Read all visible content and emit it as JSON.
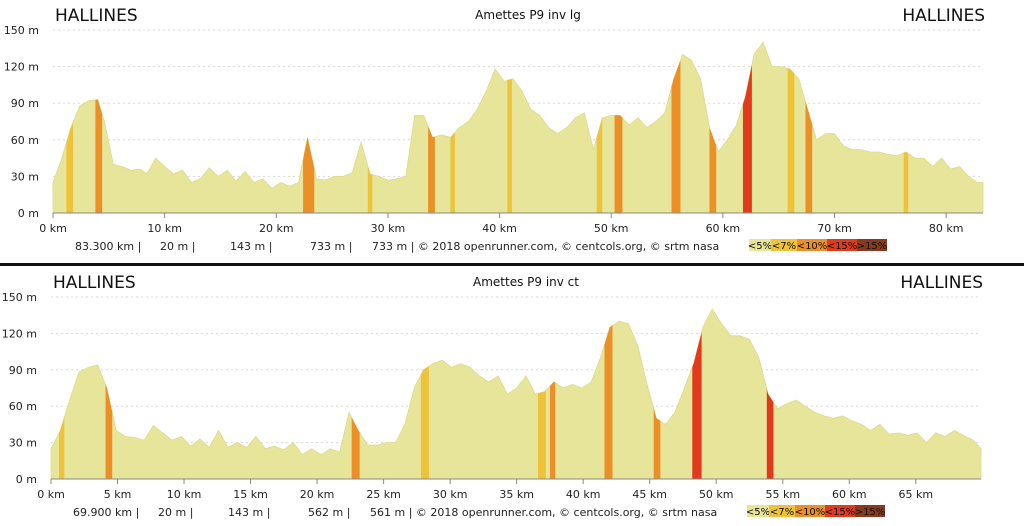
{
  "colors": {
    "base": "#e6e59a",
    "grade": [
      "#e6e59a",
      "#eec33a",
      "#eb8f26",
      "#e23a1a",
      "#8a3a1c"
    ]
  },
  "chart_data": [
    {
      "type": "area",
      "title": "Amettes P9 inv lg",
      "start_label": "HALLINES",
      "end_label": "HALLINES",
      "xlim": [
        0,
        83.3
      ],
      "ylim": [
        0,
        150
      ],
      "xticks": [
        {
          "v": 0,
          "label": "0 km"
        },
        {
          "v": 10,
          "label": "10 km"
        },
        {
          "v": 20,
          "label": "20 km"
        },
        {
          "v": 30,
          "label": "30 km"
        },
        {
          "v": 40,
          "label": "40 km"
        },
        {
          "v": 50,
          "label": "50 km"
        },
        {
          "v": 60,
          "label": "60 km"
        },
        {
          "v": 70,
          "label": "70 km"
        },
        {
          "v": 80,
          "label": "80 km"
        }
      ],
      "yticks": [
        {
          "v": 0,
          "label": "0 m"
        },
        {
          "v": 30,
          "label": "30 m"
        },
        {
          "v": 60,
          "label": "60 m"
        },
        {
          "v": 90,
          "label": "90 m"
        },
        {
          "v": 120,
          "label": "120 m"
        },
        {
          "v": 150,
          "label": "150 m"
        }
      ],
      "grid": true,
      "distance": [
        0,
        0.8,
        1.6,
        2.4,
        3.2,
        4.0,
        4.6,
        5.4,
        6.2,
        7.0,
        7.8,
        8.4,
        9.2,
        10.0,
        10.8,
        11.6,
        12.4,
        13.2,
        14.0,
        14.8,
        15.6,
        16.4,
        17.2,
        18.0,
        18.8,
        19.6,
        20.4,
        21.2,
        22.0,
        22.8,
        23.6,
        24.4,
        25.2,
        26.0,
        26.8,
        27.6,
        28.4,
        29.2,
        30.0,
        30.8,
        31.6,
        32.4,
        33.2,
        34.0,
        34.8,
        35.6,
        36.4,
        37.2,
        38.0,
        38.8,
        39.6,
        40.4,
        41.2,
        42.0,
        42.8,
        43.6,
        44.4,
        45.2,
        46.0,
        46.8,
        47.6,
        48.4,
        49.2,
        50.0,
        50.8,
        51.6,
        52.4,
        53.2,
        54.0,
        54.8,
        55.6,
        56.4,
        57.2,
        58.0,
        58.8,
        59.6,
        60.4,
        61.2,
        62.0,
        62.8,
        63.6,
        64.4,
        65.2,
        66.0,
        66.8,
        67.6,
        68.4,
        69.2,
        70.0,
        70.8,
        71.6,
        72.4,
        73.2,
        74.0,
        74.8,
        75.6,
        76.4,
        77.2,
        78.0,
        78.8,
        79.6,
        80.4,
        81.2,
        82.0,
        82.8,
        83.3
      ],
      "elevation": [
        25,
        45,
        70,
        88,
        92,
        93,
        75,
        40,
        38,
        35,
        36,
        32,
        45,
        38,
        32,
        35,
        25,
        28,
        37,
        30,
        35,
        26,
        34,
        25,
        28,
        20,
        25,
        22,
        25,
        62,
        28,
        27,
        30,
        30,
        33,
        58,
        32,
        30,
        27,
        28,
        30,
        80,
        80,
        62,
        64,
        62,
        70,
        75,
        85,
        100,
        118,
        108,
        110,
        100,
        85,
        80,
        70,
        65,
        70,
        78,
        82,
        52,
        78,
        80,
        80,
        72,
        78,
        70,
        75,
        82,
        110,
        130,
        125,
        110,
        70,
        50,
        60,
        72,
        95,
        130,
        140,
        120,
        120,
        118,
        110,
        85,
        60,
        65,
        65,
        55,
        52,
        52,
        50,
        50,
        48,
        47,
        50,
        45,
        45,
        38,
        45,
        36,
        38,
        30,
        25,
        25
      ],
      "steep": [
        [
          1.2,
          1.8,
          1
        ],
        [
          3.8,
          4.4,
          2
        ],
        [
          22.4,
          23.4,
          2
        ],
        [
          28.2,
          28.6,
          1
        ],
        [
          33.6,
          34.2,
          2
        ],
        [
          35.6,
          36.0,
          1
        ],
        [
          40.7,
          41.1,
          1
        ],
        [
          48.7,
          49.2,
          1
        ],
        [
          50.3,
          51.0,
          2
        ],
        [
          55.4,
          56.2,
          2
        ],
        [
          58.8,
          59.4,
          2
        ],
        [
          61.8,
          62.6,
          3
        ],
        [
          65.8,
          66.4,
          1
        ],
        [
          67.4,
          68.0,
          2
        ],
        [
          76.2,
          76.6,
          1
        ]
      ],
      "stats": [
        "83.300 km |",
        "20 m |",
        "143 m |",
        "733 m |",
        "733 m | © 2018 openrunner.com, © centcols.org, © srtm nasa"
      ],
      "legend": [
        "<5%",
        "<7%",
        "<10%",
        "<15%",
        ">15%"
      ]
    },
    {
      "type": "area",
      "title": "Amettes P9 inv ct",
      "start_label": "HALLINES",
      "end_label": "HALLINES",
      "xlim": [
        0,
        69.9
      ],
      "ylim": [
        0,
        150
      ],
      "xticks": [
        {
          "v": 0,
          "label": "0 km"
        },
        {
          "v": 5,
          "label": "5 km"
        },
        {
          "v": 10,
          "label": "10 km"
        },
        {
          "v": 15,
          "label": "15 km"
        },
        {
          "v": 20,
          "label": "20 km"
        },
        {
          "v": 25,
          "label": "25 km"
        },
        {
          "v": 30,
          "label": "30 km"
        },
        {
          "v": 35,
          "label": "35 km"
        },
        {
          "v": 40,
          "label": "40 km"
        },
        {
          "v": 45,
          "label": "45 km"
        },
        {
          "v": 50,
          "label": "50 km"
        },
        {
          "v": 55,
          "label": "55 km"
        },
        {
          "v": 60,
          "label": "60 km"
        },
        {
          "v": 65,
          "label": "65 km"
        }
      ],
      "yticks": [
        {
          "v": 0,
          "label": "0 m"
        },
        {
          "v": 30,
          "label": "30 m"
        },
        {
          "v": 60,
          "label": "60 m"
        },
        {
          "v": 90,
          "label": "90 m"
        },
        {
          "v": 120,
          "label": "120 m"
        },
        {
          "v": 150,
          "label": "150 m"
        }
      ],
      "grid": true,
      "distance": [
        0,
        0.7,
        1.4,
        2.1,
        2.8,
        3.5,
        4.2,
        4.9,
        5.6,
        6.3,
        7.0,
        7.7,
        8.4,
        9.1,
        9.8,
        10.5,
        11.2,
        11.9,
        12.6,
        13.3,
        14.0,
        14.7,
        15.4,
        16.1,
        16.8,
        17.5,
        18.2,
        18.9,
        19.6,
        20.3,
        21.0,
        21.7,
        22.4,
        23.1,
        23.8,
        24.5,
        25.2,
        25.9,
        26.6,
        27.3,
        28.0,
        28.7,
        29.4,
        30.1,
        30.8,
        31.5,
        32.2,
        32.9,
        33.6,
        34.3,
        35.0,
        35.7,
        36.4,
        37.1,
        37.8,
        38.5,
        39.2,
        39.9,
        40.6,
        41.3,
        42.0,
        42.7,
        43.4,
        44.1,
        44.8,
        45.5,
        46.2,
        46.9,
        47.6,
        48.3,
        49.0,
        49.7,
        50.4,
        51.1,
        51.8,
        52.5,
        53.2,
        53.9,
        54.6,
        55.3,
        56.0,
        56.7,
        57.4,
        58.1,
        58.8,
        59.5,
        60.2,
        60.9,
        61.6,
        62.3,
        63.0,
        63.7,
        64.4,
        65.1,
        65.8,
        66.5,
        67.2,
        67.9,
        68.6,
        69.3,
        69.9
      ],
      "elevation": [
        25,
        40,
        65,
        88,
        92,
        94,
        75,
        40,
        35,
        34,
        32,
        44,
        38,
        32,
        35,
        27,
        33,
        26,
        40,
        26,
        30,
        26,
        35,
        25,
        27,
        24,
        30,
        20,
        25,
        20,
        25,
        22,
        55,
        40,
        28,
        28,
        30,
        30,
        45,
        75,
        90,
        95,
        98,
        92,
        95,
        92,
        85,
        80,
        85,
        70,
        75,
        85,
        70,
        72,
        80,
        75,
        78,
        75,
        80,
        100,
        125,
        130,
        128,
        110,
        78,
        50,
        45,
        55,
        75,
        95,
        125,
        140,
        128,
        118,
        118,
        115,
        100,
        70,
        58,
        62,
        65,
        60,
        55,
        52,
        50,
        52,
        48,
        45,
        40,
        45,
        37,
        38,
        36,
        38,
        30,
        38,
        35,
        40,
        36,
        32,
        25
      ],
      "steep": [
        [
          0.6,
          1.0,
          1
        ],
        [
          4.1,
          4.6,
          2
        ],
        [
          22.6,
          23.2,
          2
        ],
        [
          27.8,
          28.4,
          1
        ],
        [
          36.6,
          37.2,
          1
        ],
        [
          37.5,
          37.9,
          2
        ],
        [
          41.6,
          42.2,
          2
        ],
        [
          45.3,
          45.8,
          2
        ],
        [
          48.2,
          48.9,
          3
        ],
        [
          53.8,
          54.3,
          3
        ]
      ],
      "stats": [
        "69.900 km |",
        "20 m |",
        "143 m |",
        "562 m |",
        "561 m | © 2018 openrunner.com, © centcols.org, © srtm nasa"
      ],
      "legend": [
        "<5%",
        "<7%",
        "<10%",
        "<15%",
        ">15%"
      ]
    }
  ]
}
